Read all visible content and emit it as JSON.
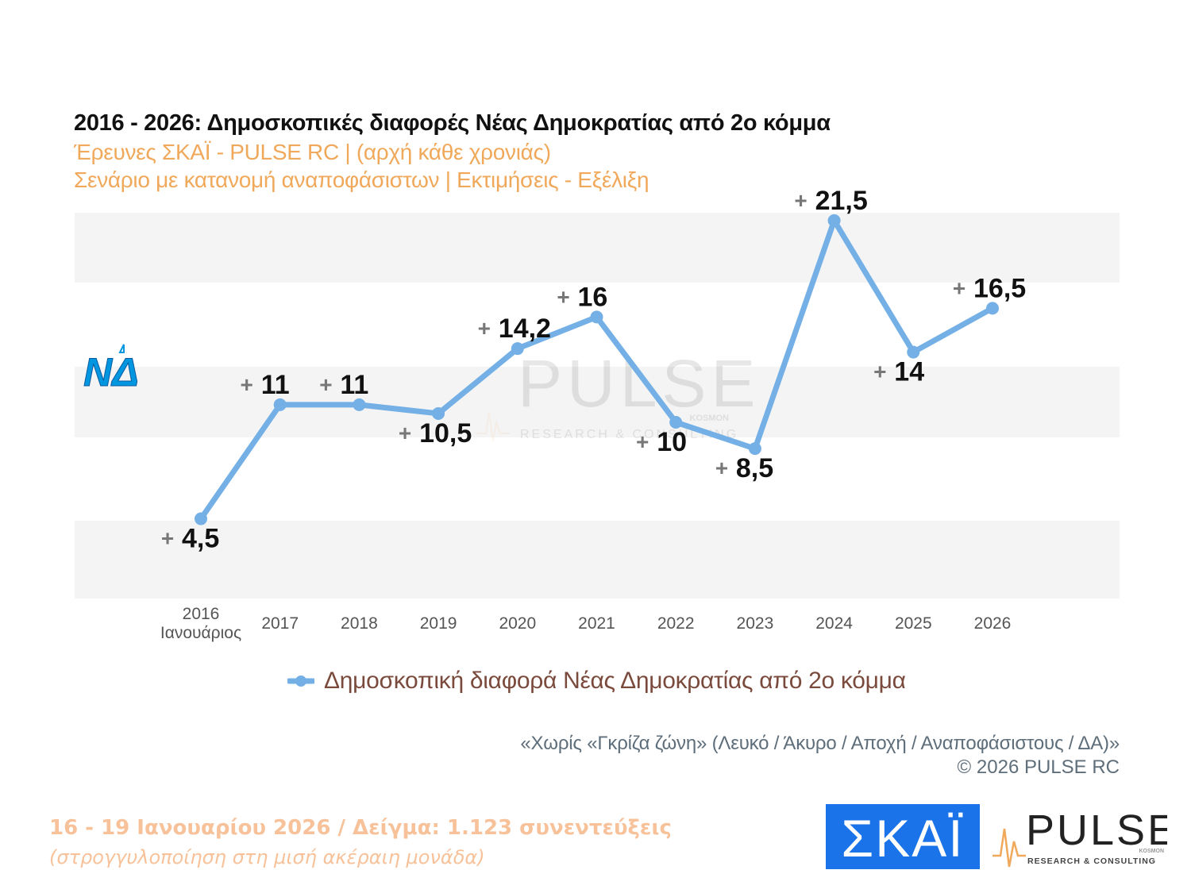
{
  "header": {
    "title": "2016 - 2026: Δημοσκοπικές διαφορές Νέας Δημοκρατίας από 2ο κόμμα",
    "subtitle1": "Έρευνες ΣΚΑΪ - PULSE RC  |  (αρχή κάθε χρονιάς)",
    "subtitle2": "Σενάριο με κατανομή αναποφάσιστων  |  Εκτιμήσεις - Εξέλιξη"
  },
  "chart_data": {
    "type": "line",
    "categories": [
      "2016|Ιανουάριος",
      "2017",
      "2018",
      "2019",
      "2020",
      "2021",
      "2022",
      "2023",
      "2024",
      "2025",
      "2026"
    ],
    "series": [
      {
        "name": "Δημοσκοπική διαφορά Νέας Δημοκρατίας από 2ο κόμμα",
        "values": [
          4.5,
          11,
          11,
          10.5,
          14.2,
          16,
          10,
          8.5,
          21.5,
          14,
          16.5
        ],
        "data_labels": [
          "4,5",
          "11",
          "11",
          "10,5",
          "14,2",
          "16",
          "10",
          "8,5",
          "21,5",
          "14",
          "16,5"
        ],
        "label_position": [
          "below",
          "above",
          "above",
          "below",
          "above",
          "above",
          "below",
          "below",
          "above",
          "below",
          "above"
        ],
        "color": "#74b0e6"
      }
    ],
    "ylim": [
      0,
      26
    ],
    "legend": "bottom",
    "grid": "horizontal-bands"
  },
  "logos": {
    "party": "ΝΔ",
    "channel": "ΣΚΑΪ",
    "pulse": "PULSE",
    "pulse_tagline": "RESEARCH & CONSULTING",
    "pulse_kosmon": "KOSMON"
  },
  "watermark": {
    "text": "PULSE",
    "kosmon": "KOSMON",
    "tagline": "RESEARCH & CONSULTING"
  },
  "note": {
    "line1": "«Χωρίς «Γκρίζα ζώνη»   (Λευκό / Άκυρο / Αποχή / Αναποφάσιστους / ΔΑ)»",
    "line2": "©  2026  PULSE RC"
  },
  "footer": {
    "date_sample": "16 - 19 Ιανουαρίου 2026  /  Δείγμα:  1.123 συνεντεύξεις",
    "rounding": "(στρογγυλοποίηση στη μισή ακέραιη μονάδα)"
  },
  "colors": {
    "accent": "#f0a85a",
    "line": "#74b0e6",
    "band": "#f4f4f4",
    "skai": "#1a73e8",
    "nd": "#0096e0"
  }
}
